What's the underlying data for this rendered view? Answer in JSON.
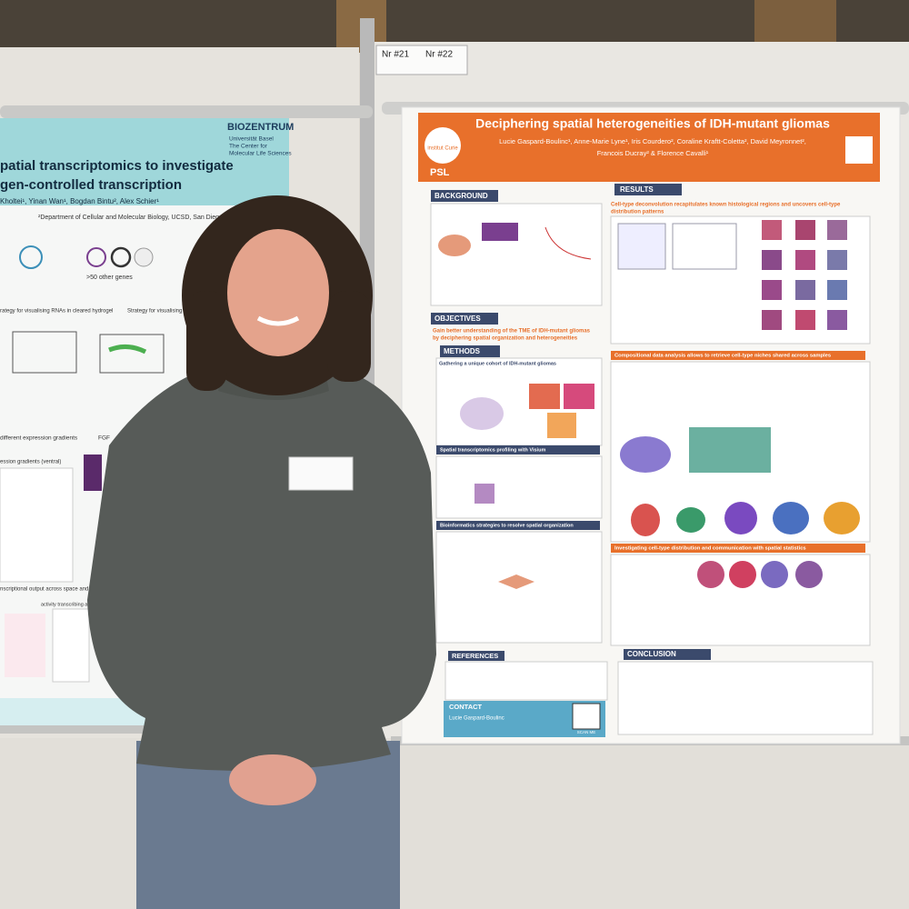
{
  "signs": {
    "left": "Nr #21",
    "right": "Nr #22"
  },
  "left_poster": {
    "institute": "BIOZENTRUM",
    "affiliation_lines": [
      "Universität Basel",
      "The Center for",
      "Molecular Life Sciences"
    ],
    "title_lines": [
      "patial transcriptomics to investigate",
      "gen-controlled transcription"
    ],
    "authors": "Kholtei¹, Yinan Wan¹, Bogdan Bintu², Alex Schier¹",
    "department": "²Department of Cellular and Molecular Biology, UCSD, San Diego, USA",
    "labels": [
      ">50 other genes",
      "rategy for visualising RNAs in cleared hydrogel",
      "Strategy for visualising cell borders",
      "different expression gradients",
      "FGF",
      "ession gradients (ventral)",
      "nscriptional output across space and gene",
      "activity transcribing alleles"
    ]
  },
  "right_poster": {
    "title": "Deciphering spatial heterogeneities of IDH-mutant gliomas",
    "author_lines": [
      "Lucie Gaspard-Boulinc¹, Anne-Marie Lyne¹, Iris Courdero², Coraline Kraftt-Coletta², David Meyronnet²,",
      "Francois Ducray² & Florence Cavalli¹"
    ],
    "logos": [
      "institut Curie",
      "PSL"
    ],
    "sections": {
      "background": "BACKGROUND",
      "objectives": "OBJECTIVES",
      "objective_text_lines": [
        "Gain better understanding of the TME of IDH-mutant gliomas",
        "by deciphering spatial organization and heterogeneities"
      ],
      "methods": "METHODS",
      "results": "RESULTS",
      "references": "REFERENCES",
      "contact": "CONTACT",
      "conclusion": "CONCLUSION"
    },
    "method_headers": [
      "Gathering a unique cohort of IDH-mutant gliomas",
      "Spatial transcriptomics profiling with Visium",
      "Bioinformatics strategies to resolve spatial organization"
    ],
    "result_headers": [
      "Cell-type deconvolution recapitulates known histological regions and uncovers cell-type",
      "distribution patterns",
      "Compositional data analysis allows to retrieve cell-type niches shared across samples",
      "Investigating cell-type distribution and communication with spatial statistics"
    ],
    "contact_name": "Lucie Gaspard-Boulinc",
    "scan": "SCAN ME"
  }
}
